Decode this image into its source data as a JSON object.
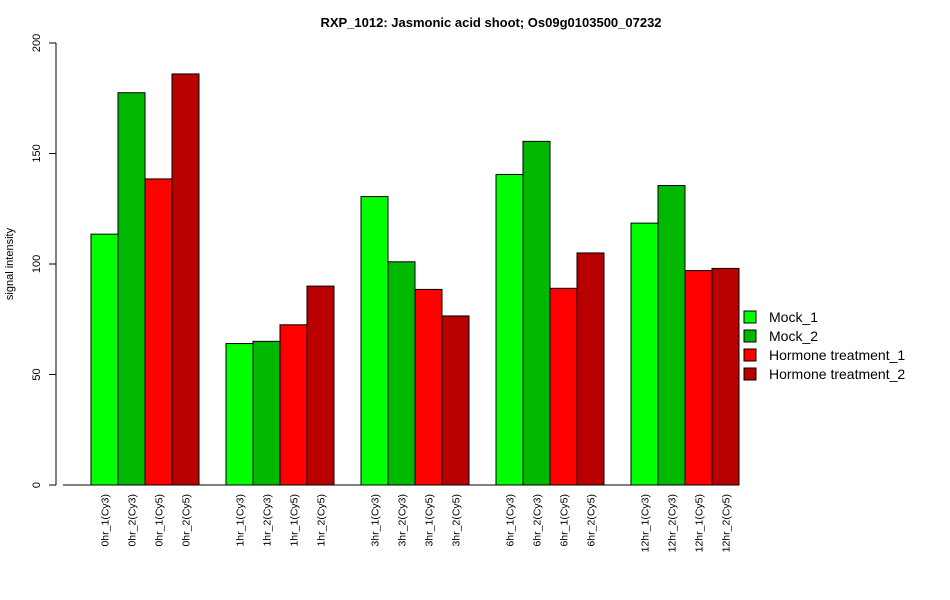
{
  "chart_data": {
    "type": "bar",
    "title": "RXP_1012: Jasmonic acid shoot; Os09g0103500_07232",
    "xlabel": "",
    "ylabel": "signal intensity",
    "ylim": [
      0,
      200
    ],
    "yticks": [
      0,
      50,
      100,
      150,
      200
    ],
    "grid": false,
    "legend_position": "right",
    "categories": [
      "0hr_1(Cy3)",
      "0hr_2(Cy3)",
      "0hr_1(Cy5)",
      "0hr_2(Cy5)",
      "1hr_1(Cy3)",
      "1hr_2(Cy3)",
      "1hr_1(Cy5)",
      "1hr_2(Cy5)",
      "3hr_1(Cy3)",
      "3hr_2(Cy3)",
      "3hr_1(Cy5)",
      "3hr_2(Cy5)",
      "6hr_1(Cy3)",
      "6hr_2(Cy3)",
      "6hr_1(Cy5)",
      "6hr_2(Cy5)",
      "12hr_1(Cy3)",
      "12hr_2(Cy3)",
      "12hr_1(Cy5)",
      "12hr_2(Cy5)"
    ],
    "values": [
      113.5,
      177.5,
      138.5,
      186,
      64,
      65,
      72.5,
      90,
      130.5,
      101,
      88.5,
      76.5,
      140.5,
      155.5,
      89,
      105,
      118.5,
      135.5,
      97,
      98
    ],
    "bar_series": [
      0,
      1,
      2,
      3,
      0,
      1,
      2,
      3,
      0,
      1,
      2,
      3,
      0,
      1,
      2,
      3,
      0,
      1,
      2,
      3
    ],
    "series": [
      {
        "name": "Mock_1",
        "color": "#00ff00"
      },
      {
        "name": "Mock_2",
        "color": "#00b800"
      },
      {
        "name": "Hormone treatment_1",
        "color": "#ff0000"
      },
      {
        "name": "Hormone treatment_2",
        "color": "#b80000"
      }
    ]
  }
}
